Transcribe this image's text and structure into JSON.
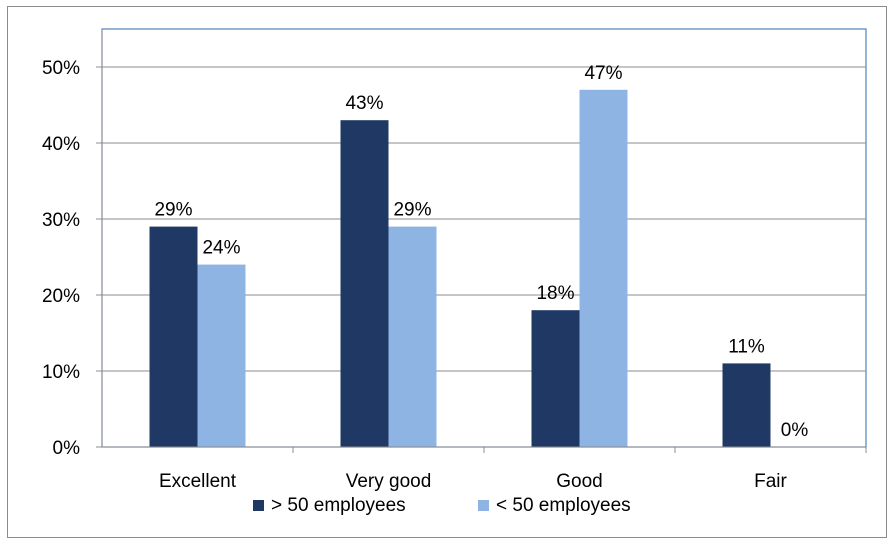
{
  "chart_data": {
    "type": "bar",
    "categories": [
      "Excellent",
      "Very good",
      "Good",
      "Fair"
    ],
    "series": [
      {
        "name": "> 50 employees",
        "values": [
          29,
          43,
          18,
          11
        ],
        "labels": [
          "29%",
          "43%",
          "18%",
          "11%"
        ],
        "color": "#1f3864"
      },
      {
        "name": "< 50 employees",
        "values": [
          24,
          29,
          47,
          0
        ],
        "labels": [
          "24%",
          "29%",
          "47%",
          "0%"
        ],
        "color": "#8eb4e3"
      }
    ],
    "y_ticks": [
      "0%",
      "10%",
      "20%",
      "30%",
      "40%",
      "50%"
    ],
    "ylim": [
      0,
      50
    ],
    "title": "",
    "xlabel": "",
    "ylabel": "",
    "grid": true,
    "legend_position": "bottom"
  }
}
